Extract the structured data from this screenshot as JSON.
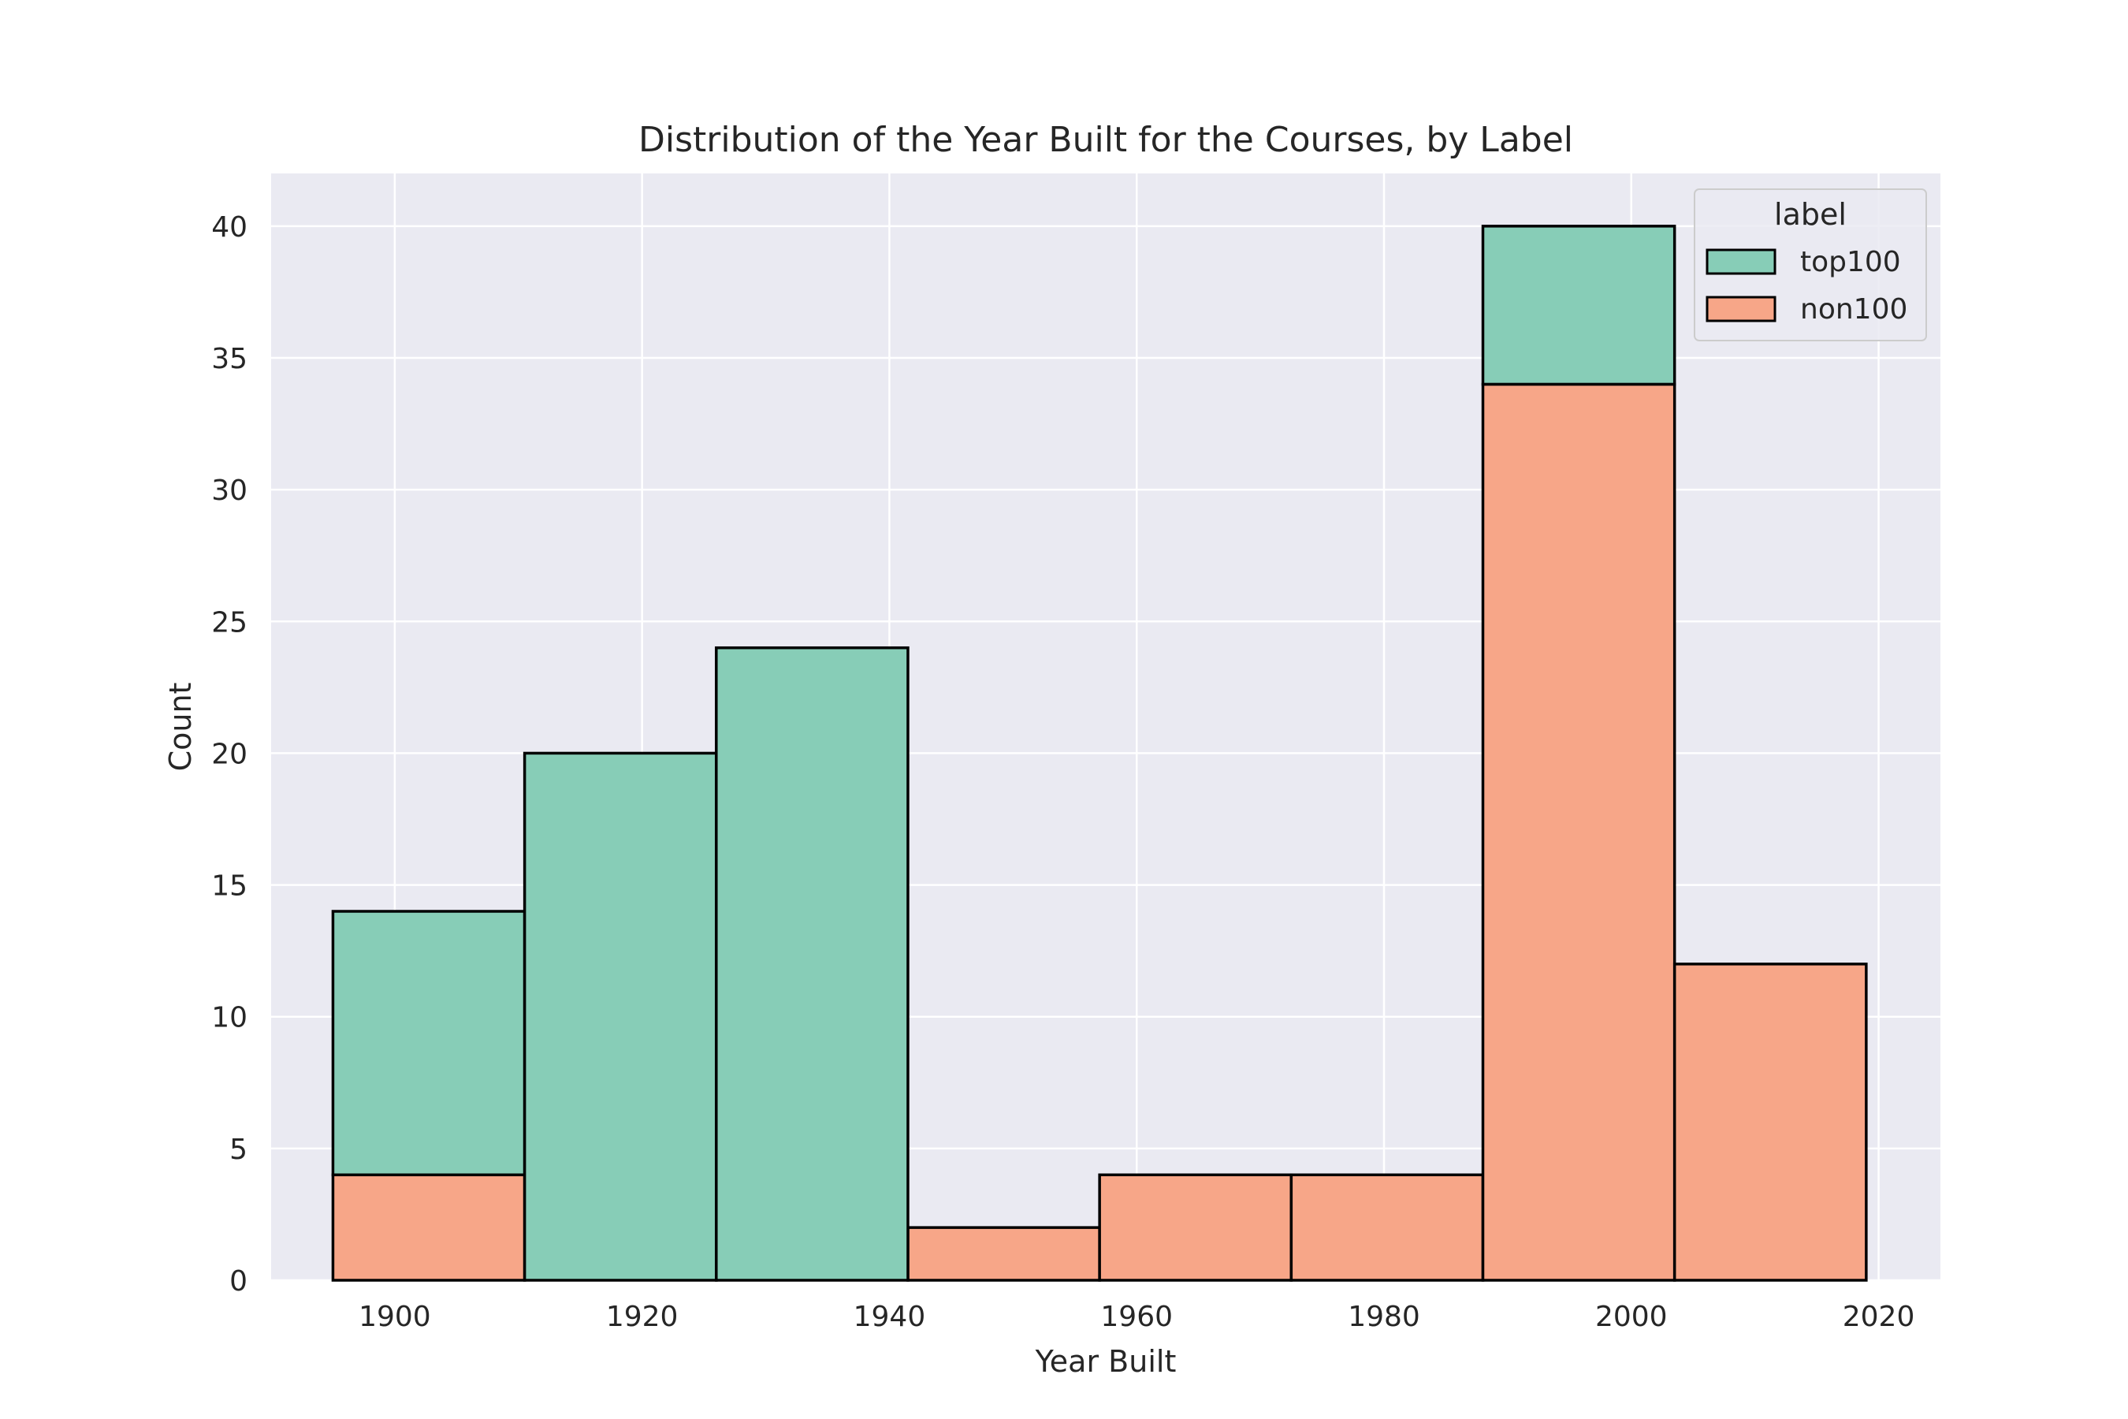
{
  "chart_data": {
    "type": "bar",
    "title": "Distribution of the Year Built for the Courses, by Label",
    "xlabel": "Year Built",
    "ylabel": "Count",
    "xlim": [
      1890,
      2025
    ],
    "ylim": [
      0,
      42
    ],
    "x_ticks": [
      1900,
      1920,
      1940,
      1960,
      1980,
      2000,
      2020
    ],
    "y_ticks": [
      0,
      5,
      10,
      15,
      20,
      25,
      30,
      35,
      40
    ],
    "grid": true,
    "stacked": true,
    "bin_edges": [
      1895.0,
      1910.5,
      1926.0,
      1941.5,
      1957.0,
      1972.5,
      1988.0,
      2003.5,
      2019.0
    ],
    "series": [
      {
        "name": "non100",
        "values": [
          4,
          0,
          0,
          2,
          4,
          4,
          34,
          12
        ],
        "color": "#f7a688"
      },
      {
        "name": "top100",
        "values": [
          10,
          20,
          24,
          0,
          0,
          0,
          6,
          0
        ],
        "color": "#87cdb7"
      }
    ],
    "legend": {
      "title": "label",
      "placement": "top-right",
      "items": [
        {
          "name": "top100",
          "color": "#87cdb7"
        },
        {
          "name": "non100",
          "color": "#f7a688"
        }
      ]
    },
    "style": {
      "axes_background": "#eaeaf2",
      "grid_color": "#ffffff",
      "edge_color": "#000000"
    }
  }
}
